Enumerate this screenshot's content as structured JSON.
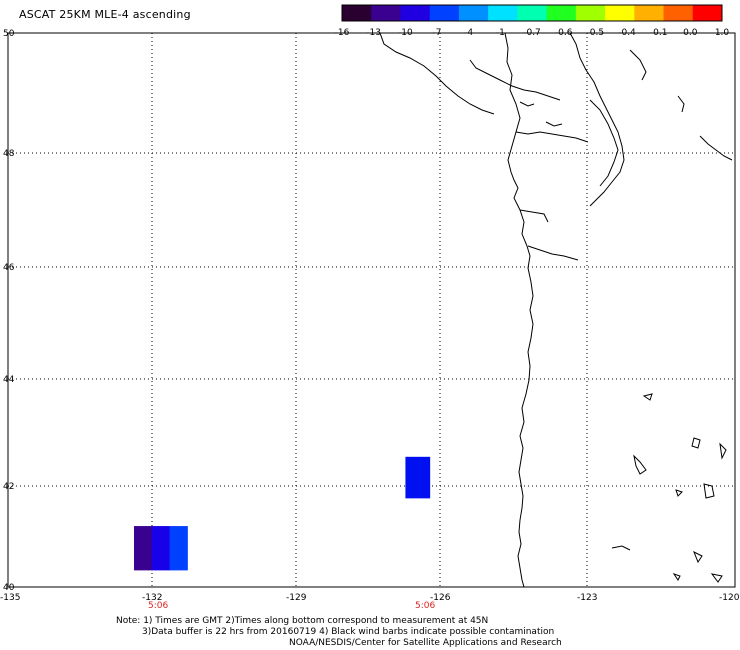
{
  "title": "ASCAT 25KM MLE-4 ascending",
  "colorbar": {
    "labels": [
      "-16",
      "-13",
      "-10",
      "-7",
      "-4",
      "-1",
      "-0.7",
      "-0.6",
      "-0.5",
      "-0.4",
      "-0.1",
      "0.0",
      "1.0"
    ],
    "colors": [
      "#2a0030",
      "#3a0090",
      "#2000e0",
      "#0040ff",
      "#0090ff",
      "#00e0ff",
      "#00ffb0",
      "#20ff20",
      "#a0ff00",
      "#ffff00",
      "#ffb000",
      "#ff6000",
      "#ff0000"
    ]
  },
  "axes": {
    "lon_labels": [
      "-135",
      "-132",
      "-129",
      "-126",
      "-123",
      "-120"
    ],
    "lat_labels": [
      "50",
      "48",
      "46",
      "44",
      "42",
      "40"
    ]
  },
  "time_labels": [
    "5:06",
    "5:06"
  ],
  "swaths": [
    {
      "lon_min": -132.4,
      "lon_max": -131.3,
      "lat_min": 40.3,
      "lat_max": 41.1,
      "colors": [
        "#3a0090",
        "#1800e8",
        "#0040ff"
      ]
    },
    {
      "lon_min": -126.8,
      "lon_max": -126.3,
      "lat_min": 41.6,
      "lat_max": 42.35,
      "colors": [
        "#0010f0"
      ]
    }
  ],
  "notes": {
    "line1": "Note: 1) Times are GMT 2)Times along bottom correspond to measurement at 45N",
    "line2": "3)Data buffer is 22 hrs from 20160719 4) Black wind barbs indicate possible contamination",
    "line3": "NOAA/NESDIS/Center for Satellite Applications and Research"
  }
}
